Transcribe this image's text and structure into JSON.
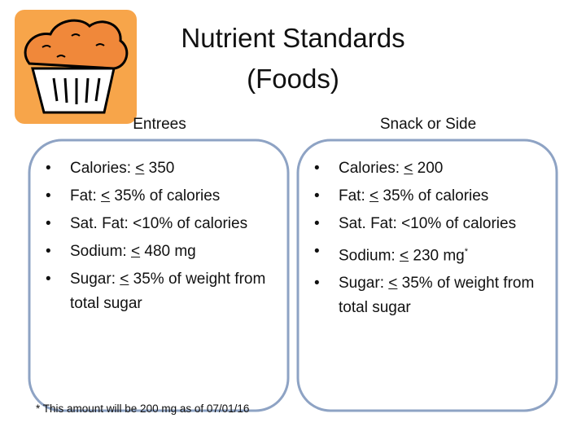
{
  "title": [
    "Nutrient Standards",
    "(Foods)"
  ],
  "columns": [
    {
      "heading": "Entrees",
      "items": [
        {
          "text": "Calories: ",
          "underlined": "<",
          "rest": " 350"
        },
        {
          "text": "Fat: ",
          "underlined": "<",
          "rest": " 35% of calories"
        },
        {
          "text": "Sat. Fat: <10% of calories"
        },
        {
          "text": "Sodium: ",
          "underlined": "<",
          "rest": " 480 mg"
        },
        {
          "text": "Sugar: ",
          "underlined": "<",
          "rest": " 35% of weight from total sugar"
        }
      ]
    },
    {
      "heading": "Snack or Side",
      "items": [
        {
          "text": "Calories: ",
          "underlined": "<",
          "rest": " 200"
        },
        {
          "text": "Fat: ",
          "underlined": "<",
          "rest": " 35% of calories"
        },
        {
          "text": "Sat. Fat: <10% of calories"
        },
        {
          "text": "Sodium: ",
          "underlined": "<",
          "rest": " 230 mg",
          "sup": "*"
        },
        {
          "text": "Sugar: ",
          "underlined": "<",
          "rest": " 35% of weight from total sugar"
        }
      ]
    }
  ],
  "footnote": "* This amount will be 200 mg as of 07/01/16"
}
